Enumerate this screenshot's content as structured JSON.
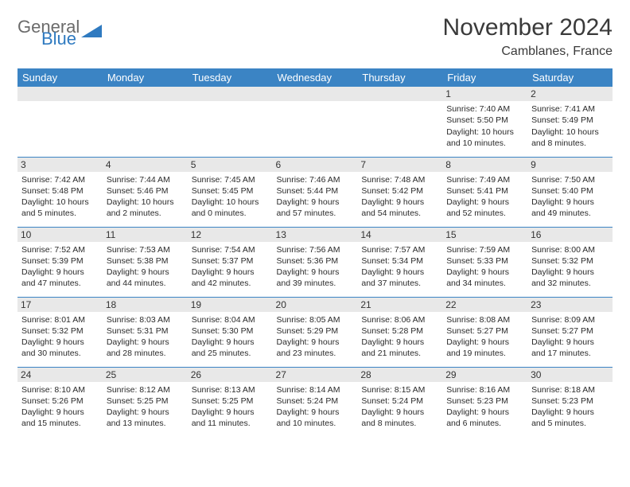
{
  "logo": {
    "word1": "General",
    "word2": "Blue",
    "color1": "#6b6b6b",
    "color2": "#2f7ac0"
  },
  "title": "November 2024",
  "location": "Camblanes, France",
  "header_bg": "#3b84c4",
  "daynum_bg": "#e8e8e8",
  "border_color": "#3b84c4",
  "days_of_week": [
    "Sunday",
    "Monday",
    "Tuesday",
    "Wednesday",
    "Thursday",
    "Friday",
    "Saturday"
  ],
  "weeks": [
    [
      null,
      null,
      null,
      null,
      null,
      {
        "n": "1",
        "sr": "Sunrise: 7:40 AM",
        "ss": "Sunset: 5:50 PM",
        "dl": "Daylight: 10 hours and 10 minutes."
      },
      {
        "n": "2",
        "sr": "Sunrise: 7:41 AM",
        "ss": "Sunset: 5:49 PM",
        "dl": "Daylight: 10 hours and 8 minutes."
      }
    ],
    [
      {
        "n": "3",
        "sr": "Sunrise: 7:42 AM",
        "ss": "Sunset: 5:48 PM",
        "dl": "Daylight: 10 hours and 5 minutes."
      },
      {
        "n": "4",
        "sr": "Sunrise: 7:44 AM",
        "ss": "Sunset: 5:46 PM",
        "dl": "Daylight: 10 hours and 2 minutes."
      },
      {
        "n": "5",
        "sr": "Sunrise: 7:45 AM",
        "ss": "Sunset: 5:45 PM",
        "dl": "Daylight: 10 hours and 0 minutes."
      },
      {
        "n": "6",
        "sr": "Sunrise: 7:46 AM",
        "ss": "Sunset: 5:44 PM",
        "dl": "Daylight: 9 hours and 57 minutes."
      },
      {
        "n": "7",
        "sr": "Sunrise: 7:48 AM",
        "ss": "Sunset: 5:42 PM",
        "dl": "Daylight: 9 hours and 54 minutes."
      },
      {
        "n": "8",
        "sr": "Sunrise: 7:49 AM",
        "ss": "Sunset: 5:41 PM",
        "dl": "Daylight: 9 hours and 52 minutes."
      },
      {
        "n": "9",
        "sr": "Sunrise: 7:50 AM",
        "ss": "Sunset: 5:40 PM",
        "dl": "Daylight: 9 hours and 49 minutes."
      }
    ],
    [
      {
        "n": "10",
        "sr": "Sunrise: 7:52 AM",
        "ss": "Sunset: 5:39 PM",
        "dl": "Daylight: 9 hours and 47 minutes."
      },
      {
        "n": "11",
        "sr": "Sunrise: 7:53 AM",
        "ss": "Sunset: 5:38 PM",
        "dl": "Daylight: 9 hours and 44 minutes."
      },
      {
        "n": "12",
        "sr": "Sunrise: 7:54 AM",
        "ss": "Sunset: 5:37 PM",
        "dl": "Daylight: 9 hours and 42 minutes."
      },
      {
        "n": "13",
        "sr": "Sunrise: 7:56 AM",
        "ss": "Sunset: 5:36 PM",
        "dl": "Daylight: 9 hours and 39 minutes."
      },
      {
        "n": "14",
        "sr": "Sunrise: 7:57 AM",
        "ss": "Sunset: 5:34 PM",
        "dl": "Daylight: 9 hours and 37 minutes."
      },
      {
        "n": "15",
        "sr": "Sunrise: 7:59 AM",
        "ss": "Sunset: 5:33 PM",
        "dl": "Daylight: 9 hours and 34 minutes."
      },
      {
        "n": "16",
        "sr": "Sunrise: 8:00 AM",
        "ss": "Sunset: 5:32 PM",
        "dl": "Daylight: 9 hours and 32 minutes."
      }
    ],
    [
      {
        "n": "17",
        "sr": "Sunrise: 8:01 AM",
        "ss": "Sunset: 5:32 PM",
        "dl": "Daylight: 9 hours and 30 minutes."
      },
      {
        "n": "18",
        "sr": "Sunrise: 8:03 AM",
        "ss": "Sunset: 5:31 PM",
        "dl": "Daylight: 9 hours and 28 minutes."
      },
      {
        "n": "19",
        "sr": "Sunrise: 8:04 AM",
        "ss": "Sunset: 5:30 PM",
        "dl": "Daylight: 9 hours and 25 minutes."
      },
      {
        "n": "20",
        "sr": "Sunrise: 8:05 AM",
        "ss": "Sunset: 5:29 PM",
        "dl": "Daylight: 9 hours and 23 minutes."
      },
      {
        "n": "21",
        "sr": "Sunrise: 8:06 AM",
        "ss": "Sunset: 5:28 PM",
        "dl": "Daylight: 9 hours and 21 minutes."
      },
      {
        "n": "22",
        "sr": "Sunrise: 8:08 AM",
        "ss": "Sunset: 5:27 PM",
        "dl": "Daylight: 9 hours and 19 minutes."
      },
      {
        "n": "23",
        "sr": "Sunrise: 8:09 AM",
        "ss": "Sunset: 5:27 PM",
        "dl": "Daylight: 9 hours and 17 minutes."
      }
    ],
    [
      {
        "n": "24",
        "sr": "Sunrise: 8:10 AM",
        "ss": "Sunset: 5:26 PM",
        "dl": "Daylight: 9 hours and 15 minutes."
      },
      {
        "n": "25",
        "sr": "Sunrise: 8:12 AM",
        "ss": "Sunset: 5:25 PM",
        "dl": "Daylight: 9 hours and 13 minutes."
      },
      {
        "n": "26",
        "sr": "Sunrise: 8:13 AM",
        "ss": "Sunset: 5:25 PM",
        "dl": "Daylight: 9 hours and 11 minutes."
      },
      {
        "n": "27",
        "sr": "Sunrise: 8:14 AM",
        "ss": "Sunset: 5:24 PM",
        "dl": "Daylight: 9 hours and 10 minutes."
      },
      {
        "n": "28",
        "sr": "Sunrise: 8:15 AM",
        "ss": "Sunset: 5:24 PM",
        "dl": "Daylight: 9 hours and 8 minutes."
      },
      {
        "n": "29",
        "sr": "Sunrise: 8:16 AM",
        "ss": "Sunset: 5:23 PM",
        "dl": "Daylight: 9 hours and 6 minutes."
      },
      {
        "n": "30",
        "sr": "Sunrise: 8:18 AM",
        "ss": "Sunset: 5:23 PM",
        "dl": "Daylight: 9 hours and 5 minutes."
      }
    ]
  ]
}
